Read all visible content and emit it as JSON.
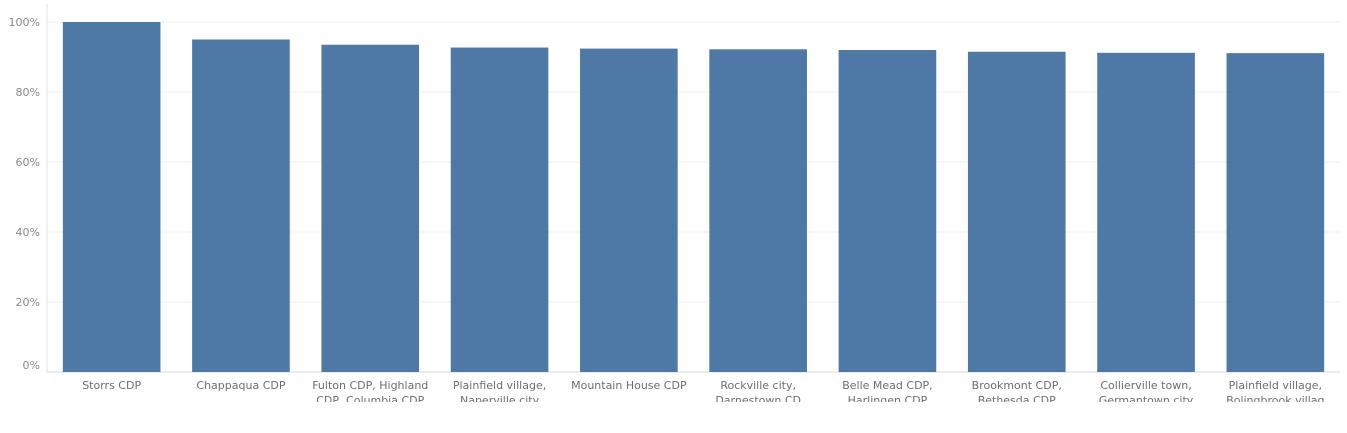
{
  "chart_data": {
    "type": "bar",
    "categories": [
      "Storrs CDP",
      "Chappaqua CDP",
      "Fulton CDP, Highland CDP, Columbia CDP",
      "Plainfield village, Naperville city",
      "Mountain House CDP",
      "Rockville city, Darnestown CD",
      "Belle Mead CDP, Harlingen CDP",
      "Brookmont CDP, Bethesda CDP",
      "Collierville town, Germantown city",
      "Plainfield village, Bolingbrook villag"
    ],
    "values": [
      100,
      95,
      93.5,
      92.7,
      92.4,
      92.2,
      92.0,
      91.5,
      91.2,
      91.1
    ],
    "ylim": [
      0,
      100
    ],
    "yticks": [
      "0%",
      "20%",
      "40%",
      "60%",
      "80%",
      "100%"
    ],
    "title": "",
    "xlabel": "",
    "ylabel": "",
    "grid": true,
    "bar_color": "#4e79a7"
  }
}
